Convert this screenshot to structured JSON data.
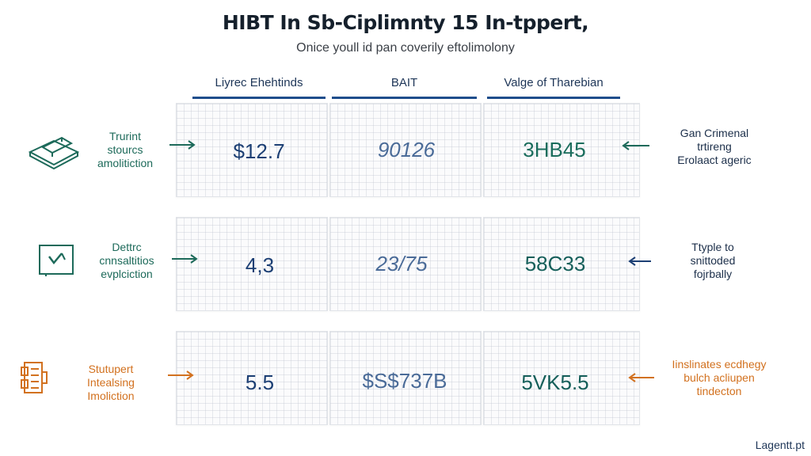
{
  "header": {
    "title": "HIBT In Sb-Ciplimnty 15 In-tppert,",
    "subtitle": "Onice youll id pan coverily eftolimolony"
  },
  "columns": [
    {
      "label": "Liyrec Ehehtinds"
    },
    {
      "label": "BAIT"
    },
    {
      "label": "Valge of Tharebian"
    }
  ],
  "rows": [
    {
      "left_label": "Trurint\nstourcs\namolitiction",
      "left_icon": "box-stack-icon",
      "values": [
        "$12.7",
        "90126",
        "3HB45"
      ],
      "right_label": "Gan Crimenal\ntrtireng\nErolaact ageric",
      "color": "#1d6a5a"
    },
    {
      "left_label": "Dettrc\ncnnsaltitios\nevplciction",
      "left_icon": "document-check-icon",
      "values": [
        "4,3",
        "23/75",
        "58C33"
      ],
      "right_label": "Ttyple to\nsnittoded\nfojrbally",
      "color": "#1c2f4a"
    },
    {
      "left_label": "Stutupert\nIntealsing\nImoliction",
      "left_icon": "server-rack-icon",
      "values": [
        "5.5",
        "$S$737B",
        "5VK5.5"
      ],
      "right_label": "Iinslinates ecdhegy\nbulch acliupen\ntindecton",
      "color": "#d2711f"
    }
  ],
  "brand": {
    "text": "Lagentt.pt"
  }
}
